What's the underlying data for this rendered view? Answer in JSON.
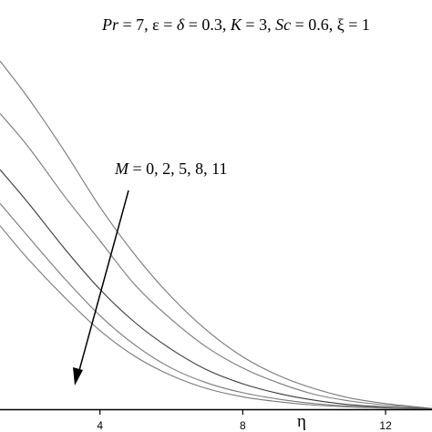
{
  "chart_data": {
    "type": "line",
    "title": "",
    "xlabel": "η",
    "ylabel": "",
    "xlim": [
      1.2,
      13.3
    ],
    "ylim": [
      0,
      1.02
    ],
    "xticks": [
      4,
      8,
      12
    ],
    "xtick_labels": [
      "4",
      "8",
      "12"
    ],
    "grid": false,
    "legend": "none",
    "parameters_label": {
      "pr_sym": "Pr",
      "pr_val": " = 7, ε = ",
      "delta_sym": "δ",
      "eps_val": " = 0.3, ",
      "k_sym": "K",
      "k_val": " = 3, ",
      "sc_sym": "Sc",
      "sc_val": " = 0.6, ξ = 1"
    },
    "annotation": {
      "sym": "M",
      "text": " = 0, 2, 5, 8, 11",
      "arrow": "down-left"
    },
    "series": [
      {
        "values_x": [
          1.2,
          2,
          3,
          4,
          5,
          6,
          7,
          8,
          9,
          10,
          11,
          12,
          13,
          13.3
        ],
        "values_y": [
          0.93,
          0.83,
          0.69,
          0.54,
          0.41,
          0.3,
          0.21,
          0.14,
          0.09,
          0.055,
          0.03,
          0.015,
          0.005,
          0.002
        ]
      },
      {
        "values_x": [
          1.2,
          2,
          3,
          4,
          5,
          6,
          7,
          8,
          9,
          10,
          11,
          12,
          13,
          13.3
        ],
        "values_y": [
          0.79,
          0.7,
          0.57,
          0.45,
          0.33,
          0.24,
          0.165,
          0.11,
          0.07,
          0.04,
          0.022,
          0.011,
          0.004,
          0.001
        ]
      },
      {
        "values_x": [
          1.2,
          2,
          3,
          4,
          5,
          6,
          7,
          8,
          9,
          10,
          11,
          12,
          13,
          13.3
        ],
        "values_y": [
          0.64,
          0.55,
          0.43,
          0.32,
          0.23,
          0.16,
          0.105,
          0.068,
          0.042,
          0.024,
          0.012,
          0.006,
          0.002,
          0.001
        ]
      },
      {
        "values_x": [
          1.2,
          2,
          3,
          4,
          5,
          6,
          7,
          8,
          9,
          10,
          11,
          12,
          13,
          13.3
        ],
        "values_y": [
          0.55,
          0.46,
          0.35,
          0.25,
          0.17,
          0.11,
          0.07,
          0.044,
          0.027,
          0.015,
          0.008,
          0.004,
          0.001,
          0.0
        ]
      },
      {
        "values_x": [
          1.2,
          2,
          3,
          4,
          5,
          6,
          7,
          8,
          9,
          10,
          11,
          12,
          13,
          13.3
        ],
        "values_y": [
          0.49,
          0.4,
          0.3,
          0.21,
          0.14,
          0.09,
          0.055,
          0.033,
          0.02,
          0.011,
          0.006,
          0.003,
          0.001,
          0.0
        ]
      }
    ]
  }
}
